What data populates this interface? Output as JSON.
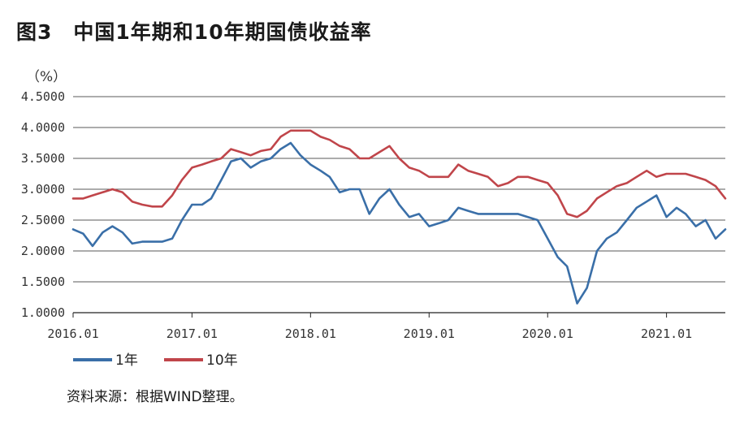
{
  "title": {
    "figure_no": "图3",
    "text": "中国1年期和10年期国债收益率"
  },
  "source": "资料来源：根据WIND整理。",
  "chart_data": {
    "type": "line",
    "ylabel": "（%）",
    "ylim": [
      1.0,
      4.5
    ],
    "yticks": [
      "1.0000",
      "1.5000",
      "2.0000",
      "2.5000",
      "3.0000",
      "3.5000",
      "4.0000",
      "4.5000"
    ],
    "ytick_values": [
      1.0,
      1.5,
      2.0,
      2.5,
      3.0,
      3.5,
      4.0,
      4.5
    ],
    "xlim": [
      "2016-01",
      "2021-07"
    ],
    "xticks": [
      "2016.01",
      "2017.01",
      "2018.01",
      "2019.01",
      "2020.01",
      "2021.01"
    ],
    "grid": "horizontal",
    "legend_position": "bottom-left",
    "series": [
      {
        "name": "1年",
        "color": "#3a6fa8",
        "x": [
          "2016-01",
          "2016-02",
          "2016-03",
          "2016-04",
          "2016-05",
          "2016-06",
          "2016-07",
          "2016-08",
          "2016-09",
          "2016-10",
          "2016-11",
          "2016-12",
          "2017-01",
          "2017-02",
          "2017-03",
          "2017-04",
          "2017-05",
          "2017-06",
          "2017-07",
          "2017-08",
          "2017-09",
          "2017-10",
          "2017-11",
          "2017-12",
          "2018-01",
          "2018-02",
          "2018-03",
          "2018-04",
          "2018-05",
          "2018-06",
          "2018-07",
          "2018-08",
          "2018-09",
          "2018-10",
          "2018-11",
          "2018-12",
          "2019-01",
          "2019-02",
          "2019-03",
          "2019-04",
          "2019-05",
          "2019-06",
          "2019-07",
          "2019-08",
          "2019-09",
          "2019-10",
          "2019-11",
          "2019-12",
          "2020-01",
          "2020-02",
          "2020-03",
          "2020-04",
          "2020-05",
          "2020-06",
          "2020-07",
          "2020-08",
          "2020-09",
          "2020-10",
          "2020-11",
          "2020-12",
          "2021-01",
          "2021-02",
          "2021-03",
          "2021-04",
          "2021-05",
          "2021-06",
          "2021-07"
        ],
        "values": [
          2.35,
          2.28,
          2.08,
          2.3,
          2.4,
          2.3,
          2.12,
          2.15,
          2.15,
          2.15,
          2.2,
          2.5,
          2.75,
          2.75,
          2.85,
          3.15,
          3.45,
          3.5,
          3.35,
          3.45,
          3.5,
          3.65,
          3.75,
          3.55,
          3.4,
          3.3,
          3.2,
          2.95,
          3.0,
          3.0,
          2.6,
          2.85,
          3.0,
          2.75,
          2.55,
          2.6,
          2.4,
          2.45,
          2.5,
          2.7,
          2.65,
          2.6,
          2.6,
          2.6,
          2.6,
          2.6,
          2.55,
          2.5,
          2.2,
          1.9,
          1.75,
          1.15,
          1.4,
          2.0,
          2.2,
          2.3,
          2.5,
          2.7,
          2.8,
          2.9,
          2.55,
          2.7,
          2.6,
          2.4,
          2.5,
          2.2,
          2.35
        ]
      },
      {
        "name": "10年",
        "color": "#c0454a",
        "x": [
          "2016-01",
          "2016-02",
          "2016-03",
          "2016-04",
          "2016-05",
          "2016-06",
          "2016-07",
          "2016-08",
          "2016-09",
          "2016-10",
          "2016-11",
          "2016-12",
          "2017-01",
          "2017-02",
          "2017-03",
          "2017-04",
          "2017-05",
          "2017-06",
          "2017-07",
          "2017-08",
          "2017-09",
          "2017-10",
          "2017-11",
          "2017-12",
          "2018-01",
          "2018-02",
          "2018-03",
          "2018-04",
          "2018-05",
          "2018-06",
          "2018-07",
          "2018-08",
          "2018-09",
          "2018-10",
          "2018-11",
          "2018-12",
          "2019-01",
          "2019-02",
          "2019-03",
          "2019-04",
          "2019-05",
          "2019-06",
          "2019-07",
          "2019-08",
          "2019-09",
          "2019-10",
          "2019-11",
          "2019-12",
          "2020-01",
          "2020-02",
          "2020-03",
          "2020-04",
          "2020-05",
          "2020-06",
          "2020-07",
          "2020-08",
          "2020-09",
          "2020-10",
          "2020-11",
          "2020-12",
          "2021-01",
          "2021-02",
          "2021-03",
          "2021-04",
          "2021-05",
          "2021-06",
          "2021-07"
        ],
        "values": [
          2.85,
          2.85,
          2.9,
          2.95,
          3.0,
          2.95,
          2.8,
          2.75,
          2.72,
          2.72,
          2.9,
          3.15,
          3.35,
          3.4,
          3.45,
          3.5,
          3.65,
          3.6,
          3.55,
          3.62,
          3.65,
          3.85,
          3.95,
          3.95,
          3.95,
          3.85,
          3.8,
          3.7,
          3.65,
          3.5,
          3.5,
          3.6,
          3.7,
          3.5,
          3.35,
          3.3,
          3.2,
          3.2,
          3.2,
          3.4,
          3.3,
          3.25,
          3.2,
          3.05,
          3.1,
          3.2,
          3.2,
          3.15,
          3.1,
          2.9,
          2.6,
          2.55,
          2.65,
          2.85,
          2.95,
          3.05,
          3.1,
          3.2,
          3.3,
          3.2,
          3.25,
          3.25,
          3.25,
          3.2,
          3.15,
          3.05,
          2.85
        ]
      }
    ]
  }
}
